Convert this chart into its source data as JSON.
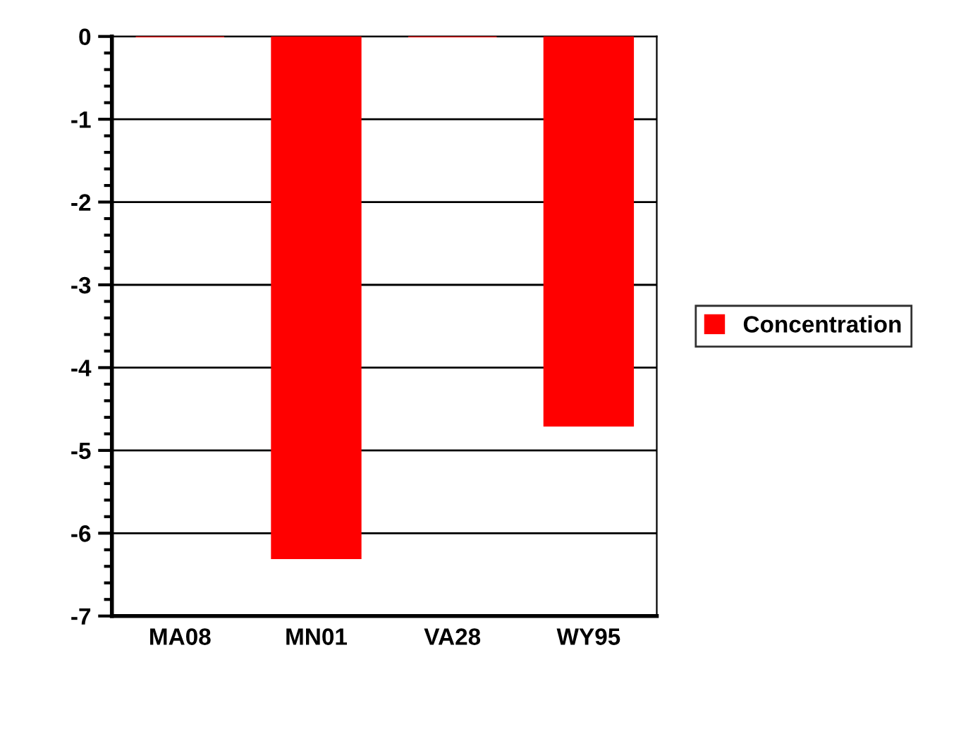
{
  "chart_data": {
    "type": "bar",
    "categories": [
      "MA08",
      "MN01",
      "VA28",
      "WY95"
    ],
    "series": [
      {
        "name": "Concentration",
        "color": "#ff0000",
        "values": [
          0,
          -6.3,
          0,
          -4.7
        ]
      }
    ],
    "ylim": [
      -7,
      0
    ],
    "yticks": [
      -7,
      -6,
      -5,
      -4,
      -3,
      -2,
      -1,
      0
    ],
    "grid": "y",
    "legend": "right"
  }
}
